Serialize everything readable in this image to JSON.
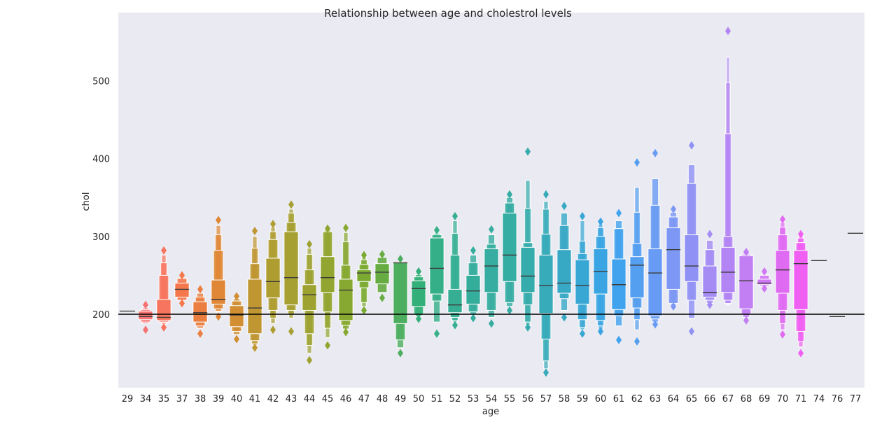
{
  "chart_data": {
    "type": "boxen",
    "title": "Relationship between age and cholestrol levels",
    "xlabel": "age",
    "ylabel": "chol",
    "ylim": [
      105,
      585
    ],
    "yticks": [
      200,
      300,
      400,
      500
    ],
    "grid": false,
    "reference_line": {
      "y": 200,
      "color": "#000000"
    },
    "categories": [
      "29",
      "34",
      "35",
      "37",
      "38",
      "39",
      "40",
      "41",
      "42",
      "43",
      "44",
      "45",
      "46",
      "47",
      "48",
      "49",
      "50",
      "51",
      "52",
      "53",
      "54",
      "55",
      "56",
      "57",
      "58",
      "59",
      "60",
      "61",
      "62",
      "63",
      "64",
      "65",
      "66",
      "67",
      "68",
      "69",
      "70",
      "71",
      "74",
      "76",
      "77"
    ],
    "boxes": [
      {
        "age": "29",
        "median": 204,
        "levels": [],
        "outliers": []
      },
      {
        "age": "34",
        "median": 197,
        "levels": [
          [
            193,
            204
          ],
          [
            190,
            206
          ],
          [
            188,
            208
          ]
        ],
        "outliers": [
          180,
          212
        ]
      },
      {
        "age": "35",
        "median": 196,
        "levels": [
          [
            192,
            219
          ],
          [
            190,
            250
          ],
          [
            189,
            266
          ],
          [
            187,
            276
          ]
        ],
        "outliers": [
          183,
          282
        ]
      },
      {
        "age": "37",
        "median": 232,
        "levels": [
          [
            222,
            240
          ],
          [
            218,
            246
          ]
        ],
        "outliers": [
          214,
          250
        ]
      },
      {
        "age": "38",
        "median": 202,
        "levels": [
          [
            190,
            216
          ],
          [
            185,
            222
          ],
          [
            182,
            227
          ]
        ],
        "outliers": [
          175,
          232
        ]
      },
      {
        "age": "39",
        "median": 219,
        "levels": [
          [
            213,
            244
          ],
          [
            207,
            282
          ],
          [
            204,
            302
          ],
          [
            203,
            314
          ]
        ],
        "outliers": [
          197,
          321
        ]
      },
      {
        "age": "40",
        "median": 199,
        "levels": [
          [
            184,
            211
          ],
          [
            178,
            217
          ],
          [
            174,
            220
          ]
        ],
        "outliers": [
          168,
          223
        ]
      },
      {
        "age": "41",
        "median": 208,
        "levels": [
          [
            175,
            245
          ],
          [
            166,
            265
          ],
          [
            162,
            285
          ],
          [
            160,
            300
          ]
        ],
        "outliers": [
          157,
          307
        ]
      },
      {
        "age": "42",
        "median": 242,
        "levels": [
          [
            221,
            272
          ],
          [
            205,
            296
          ],
          [
            195,
            306
          ],
          [
            188,
            312
          ]
        ],
        "outliers": [
          180,
          316
        ]
      },
      {
        "age": "43",
        "median": 247,
        "levels": [
          [
            212,
            306
          ],
          [
            205,
            318
          ],
          [
            200,
            330
          ],
          [
            195,
            335
          ]
        ],
        "outliers": [
          178,
          341
        ]
      },
      {
        "age": "44",
        "median": 225,
        "levels": [
          [
            205,
            238
          ],
          [
            175,
            257
          ],
          [
            160,
            277
          ],
          [
            150,
            285
          ]
        ],
        "outliers": [
          141,
          290
        ]
      },
      {
        "age": "45",
        "median": 247,
        "levels": [
          [
            228,
            274
          ],
          [
            203,
            306
          ],
          [
            182,
            308
          ],
          [
            170,
            309
          ]
        ],
        "outliers": [
          160,
          310
        ]
      },
      {
        "age": "46",
        "median": 231,
        "levels": [
          [
            192,
            245
          ],
          [
            186,
            263
          ],
          [
            181,
            293
          ],
          [
            180,
            305
          ]
        ],
        "outliers": [
          177,
          311
        ]
      },
      {
        "age": "47",
        "median": 253,
        "levels": [
          [
            242,
            257
          ],
          [
            234,
            264
          ],
          [
            215,
            270
          ],
          [
            210,
            273
          ]
        ],
        "outliers": [
          205,
          276
        ]
      },
      {
        "age": "48",
        "median": 254,
        "levels": [
          [
            239,
            265
          ],
          [
            228,
            273
          ]
        ],
        "outliers": [
          221,
          277
        ]
      },
      {
        "age": "49",
        "median": 266,
        "levels": [
          [
            188,
            266
          ],
          [
            167,
            266
          ],
          [
            157,
            267
          ]
        ],
        "outliers": [
          150,
          271
        ]
      },
      {
        "age": "50",
        "median": 233,
        "levels": [
          [
            210,
            243
          ],
          [
            200,
            248
          ],
          [
            197,
            251
          ]
        ],
        "outliers": [
          194,
          255
        ]
      },
      {
        "age": "51",
        "median": 259,
        "levels": [
          [
            226,
            298
          ],
          [
            217,
            302
          ],
          [
            190,
            304
          ]
        ],
        "outliers": [
          175,
          308
        ]
      },
      {
        "age": "52",
        "median": 212,
        "levels": [
          [
            202,
            232
          ],
          [
            196,
            276
          ],
          [
            192,
            304
          ],
          [
            190,
            320
          ]
        ],
        "outliers": [
          186,
          326
        ]
      },
      {
        "age": "53",
        "median": 230,
        "levels": [
          [
            213,
            250
          ],
          [
            203,
            266
          ],
          [
            199,
            276
          ]
        ],
        "outliers": [
          195,
          282
        ]
      },
      {
        "age": "54",
        "median": 262,
        "levels": [
          [
            228,
            284
          ],
          [
            205,
            290
          ],
          [
            196,
            302
          ]
        ],
        "outliers": [
          188,
          309
        ]
      },
      {
        "age": "55",
        "median": 276,
        "levels": [
          [
            242,
            330
          ],
          [
            215,
            343
          ],
          [
            210,
            350
          ]
        ],
        "outliers": [
          205,
          354
        ]
      },
      {
        "age": "56",
        "median": 249,
        "levels": [
          [
            228,
            286
          ],
          [
            212,
            292
          ],
          [
            190,
            336
          ],
          [
            186,
            372
          ]
        ],
        "outliers": [
          183,
          409
        ]
      },
      {
        "age": "57",
        "median": 237,
        "levels": [
          [
            201,
            276
          ],
          [
            168,
            303
          ],
          [
            140,
            335
          ],
          [
            130,
            345
          ]
        ],
        "outliers": [
          125,
          354
        ]
      },
      {
        "age": "58",
        "median": 240,
        "levels": [
          [
            227,
            283
          ],
          [
            220,
            314
          ],
          [
            205,
            330
          ]
        ],
        "outliers": [
          196,
          339
        ]
      },
      {
        "age": "59",
        "median": 237,
        "levels": [
          [
            213,
            270
          ],
          [
            193,
            278
          ],
          [
            183,
            294
          ],
          [
            180,
            320
          ]
        ],
        "outliers": [
          175,
          326
        ]
      },
      {
        "age": "60",
        "median": 255,
        "levels": [
          [
            226,
            284
          ],
          [
            192,
            300
          ],
          [
            185,
            311
          ],
          [
            180,
            316
          ]
        ],
        "outliers": [
          178,
          319
        ]
      },
      {
        "age": "61",
        "median": 238,
        "levels": [
          [
            206,
            271
          ],
          [
            198,
            310
          ],
          [
            185,
            320
          ]
        ],
        "outliers": [
          167,
          330
        ]
      },
      {
        "age": "62",
        "median": 263,
        "levels": [
          [
            221,
            274
          ],
          [
            208,
            291
          ],
          [
            193,
            331
          ],
          [
            180,
            363
          ]
        ],
        "outliers": [
          165,
          395
        ]
      },
      {
        "age": "63",
        "median": 253,
        "levels": [
          [
            198,
            284
          ],
          [
            194,
            340
          ],
          [
            190,
            374
          ]
        ],
        "outliers": [
          187,
          407
        ]
      },
      {
        "age": "64",
        "median": 283,
        "levels": [
          [
            232,
            311
          ],
          [
            214,
            325
          ],
          [
            212,
            331
          ]
        ],
        "outliers": [
          210,
          335
        ]
      },
      {
        "age": "65",
        "median": 262,
        "levels": [
          [
            242,
            302
          ],
          [
            218,
            368
          ],
          [
            195,
            392
          ]
        ],
        "outliers": [
          178,
          417
        ]
      },
      {
        "age": "66",
        "median": 228,
        "levels": [
          [
            222,
            262
          ],
          [
            218,
            283
          ],
          [
            214,
            295
          ]
        ],
        "outliers": [
          212,
          303
        ]
      },
      {
        "age": "67",
        "median": 254,
        "levels": [
          [
            228,
            286
          ],
          [
            218,
            300
          ],
          [
            214,
            432
          ],
          [
            213,
            498
          ],
          [
            212,
            530
          ]
        ],
        "outliers": [
          564
        ]
      },
      {
        "age": "68",
        "median": 243,
        "levels": [
          [
            207,
            275
          ],
          [
            200,
            277
          ],
          [
            196,
            279
          ]
        ],
        "outliers": [
          192,
          280
        ]
      },
      {
        "age": "69",
        "median": 240,
        "levels": [
          [
            238,
            245
          ],
          [
            236,
            250
          ]
        ],
        "outliers": [
          233,
          255
        ]
      },
      {
        "age": "70",
        "median": 257,
        "levels": [
          [
            227,
            282
          ],
          [
            205,
            302
          ],
          [
            188,
            312
          ],
          [
            180,
            318
          ]
        ],
        "outliers": [
          174,
          322
        ]
      },
      {
        "age": "71",
        "median": 265,
        "levels": [
          [
            206,
            282
          ],
          [
            178,
            292
          ],
          [
            165,
            298
          ],
          [
            158,
            301
          ]
        ],
        "outliers": [
          150,
          303
        ]
      },
      {
        "age": "74",
        "median": 269,
        "levels": [],
        "outliers": []
      },
      {
        "age": "76",
        "median": 197,
        "levels": [],
        "outliers": []
      },
      {
        "age": "77",
        "median": 304,
        "levels": [],
        "outliers": []
      }
    ]
  }
}
